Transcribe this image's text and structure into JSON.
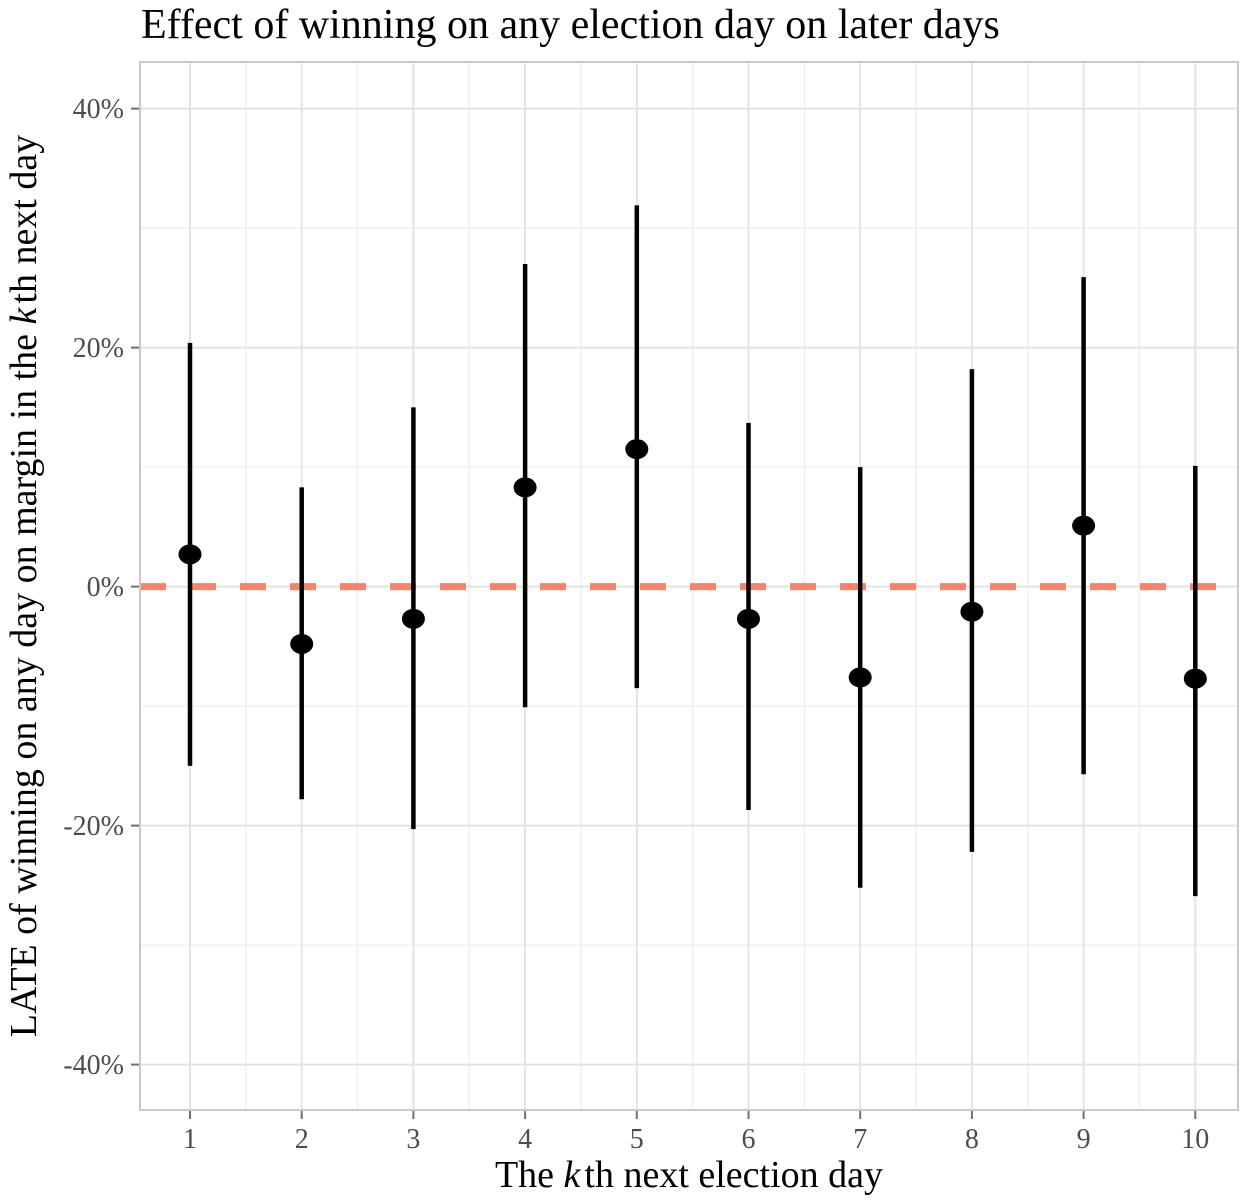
{
  "chart_data": {
    "type": "scatter",
    "title": "Effect of winning on any election day on later days",
    "xlabel_parts": {
      "pre": "The ",
      "italic": "k",
      "post": "th next election day"
    },
    "ylabel_parts": {
      "pre": "LATE of winning on any day on margin in the ",
      "italic": "k",
      "post": "th next day"
    },
    "unit": "%",
    "x_ticks": [
      1,
      2,
      3,
      4,
      5,
      6,
      7,
      8,
      9,
      10
    ],
    "x_tick_labels": [
      "1",
      "2",
      "3",
      "4",
      "5",
      "6",
      "7",
      "8",
      "9",
      "10"
    ],
    "y_ticks": [
      {
        "value": 40,
        "label": "40%"
      },
      {
        "value": 20,
        "label": "20%"
      },
      {
        "value": 0,
        "label": "0%"
      },
      {
        "value": -20,
        "label": "-20%"
      },
      {
        "value": -40,
        "label": "-40%"
      }
    ],
    "y_minor_ticks": [
      30,
      10,
      -10,
      -30
    ],
    "ylim": [
      -43.8,
      43.9
    ],
    "grid": {
      "major": true,
      "minor": true
    },
    "legend": "none",
    "reference_line": {
      "value": 0,
      "style": "dashed",
      "color": "#F8836B"
    },
    "series": [
      {
        "name": "LATE point estimate with confidence interval",
        "points": [
          {
            "x": 1,
            "estimate": 2.7,
            "ci_low": -15.0,
            "ci_high": 20.4
          },
          {
            "x": 2,
            "estimate": -4.8,
            "ci_low": -17.8,
            "ci_high": 8.3
          },
          {
            "x": 3,
            "estimate": -2.7,
            "ci_low": -20.3,
            "ci_high": 15.0
          },
          {
            "x": 4,
            "estimate": 8.3,
            "ci_low": -10.1,
            "ci_high": 27.0
          },
          {
            "x": 5,
            "estimate": 11.5,
            "ci_low": -8.5,
            "ci_high": 31.9
          },
          {
            "x": 6,
            "estimate": -2.7,
            "ci_low": -18.7,
            "ci_high": 13.7
          },
          {
            "x": 7,
            "estimate": -7.6,
            "ci_low": -25.2,
            "ci_high": 10.0
          },
          {
            "x": 8,
            "estimate": -2.1,
            "ci_low": -22.2,
            "ci_high": 18.2
          },
          {
            "x": 9,
            "estimate": 5.1,
            "ci_low": -15.7,
            "ci_high": 25.9
          },
          {
            "x": 10,
            "estimate": -7.7,
            "ci_low": -25.9,
            "ci_high": 10.1
          }
        ]
      }
    ],
    "colors": {
      "point": "#000000",
      "ci_line": "#000000",
      "reference_line": "#F8836B",
      "grid_major": "#E3E3E3",
      "grid_minor": "#EFEFEF",
      "panel_border": "#C9C9C9",
      "tick_mark": "#707070",
      "tick_label": "#4D4D4D",
      "title": "#000000",
      "axis_title": "#000000"
    }
  }
}
